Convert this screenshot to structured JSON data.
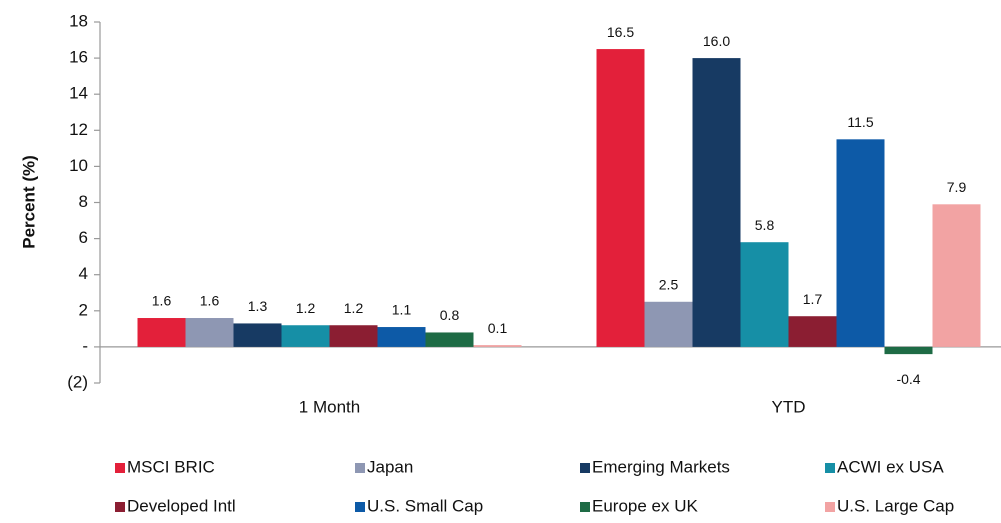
{
  "chart_data": {
    "type": "bar",
    "y_label": "Percent (%)",
    "categories": [
      "1 Month",
      "YTD"
    ],
    "ylim": [
      -2,
      18
    ],
    "yticks": [
      {
        "value": -2,
        "label": "(2)"
      },
      {
        "value": 0,
        "label": "-"
      },
      2,
      4,
      6,
      8,
      10,
      12,
      14,
      16,
      18
    ],
    "series": [
      {
        "name": "MSCI BRIC",
        "color": "#e3203a",
        "values": [
          1.6,
          16.5
        ],
        "value_labels": [
          "1.6",
          "16.5"
        ]
      },
      {
        "name": "Japan",
        "color": "#8e97b3",
        "values": [
          1.6,
          2.5
        ],
        "value_labels": [
          "1.6",
          "2.5"
        ]
      },
      {
        "name": "Emerging Markets",
        "color": "#173a63",
        "values": [
          1.3,
          16.0
        ],
        "value_labels": [
          "1.3",
          "16.0"
        ]
      },
      {
        "name": "ACWI ex USA",
        "color": "#168fa6",
        "values": [
          1.2,
          5.8
        ],
        "value_labels": [
          "1.2",
          "5.8"
        ]
      },
      {
        "name": "Developed Intl",
        "color": "#8b1e32",
        "values": [
          1.2,
          1.7
        ],
        "value_labels": [
          "1.2",
          "1.7"
        ]
      },
      {
        "name": "U.S. Small Cap",
        "color": "#0d5aa7",
        "values": [
          1.1,
          11.5
        ],
        "value_labels": [
          "1.1",
          "11.5"
        ]
      },
      {
        "name": "Europe ex UK",
        "color": "#1e6b45",
        "values": [
          0.8,
          -0.4
        ],
        "value_labels": [
          "0.8",
          "-0.4"
        ]
      },
      {
        "name": "U.S. Large Cap",
        "color": "#f2a3a3",
        "values": [
          0.1,
          7.9
        ],
        "value_labels": [
          "0.1",
          "7.9"
        ]
      }
    ]
  }
}
